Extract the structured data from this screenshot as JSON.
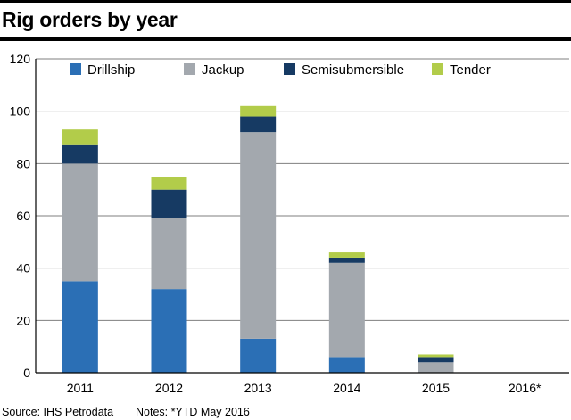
{
  "title": "Rig orders by year",
  "footer": {
    "source": "Source: IHS Petrodata",
    "notes": "Notes: *YTD May 2016"
  },
  "colors": {
    "Drillship": "#2b6fb5",
    "Jackup": "#a3a8ae",
    "Semisubmersible": "#163a63",
    "Tender": "#b2cc4a",
    "gridline": "#7f7f7f",
    "axis": "#000000"
  },
  "chart_data": {
    "type": "bar",
    "stacked": true,
    "categories": [
      "2011",
      "2012",
      "2013",
      "2014",
      "2015",
      "2016*"
    ],
    "series": [
      {
        "name": "Drillship",
        "values": [
          35,
          32,
          13,
          6,
          0,
          0
        ]
      },
      {
        "name": "Jackup",
        "values": [
          45,
          27,
          79,
          36,
          4,
          0
        ]
      },
      {
        "name": "Semisubmersible",
        "values": [
          7,
          11,
          6,
          2,
          2,
          0
        ]
      },
      {
        "name": "Tender",
        "values": [
          6,
          5,
          4,
          2,
          1,
          0
        ]
      }
    ],
    "ylim": [
      0,
      120
    ],
    "yticks": [
      0,
      20,
      40,
      60,
      80,
      100,
      120
    ],
    "grid": true,
    "legend_position": "top"
  }
}
